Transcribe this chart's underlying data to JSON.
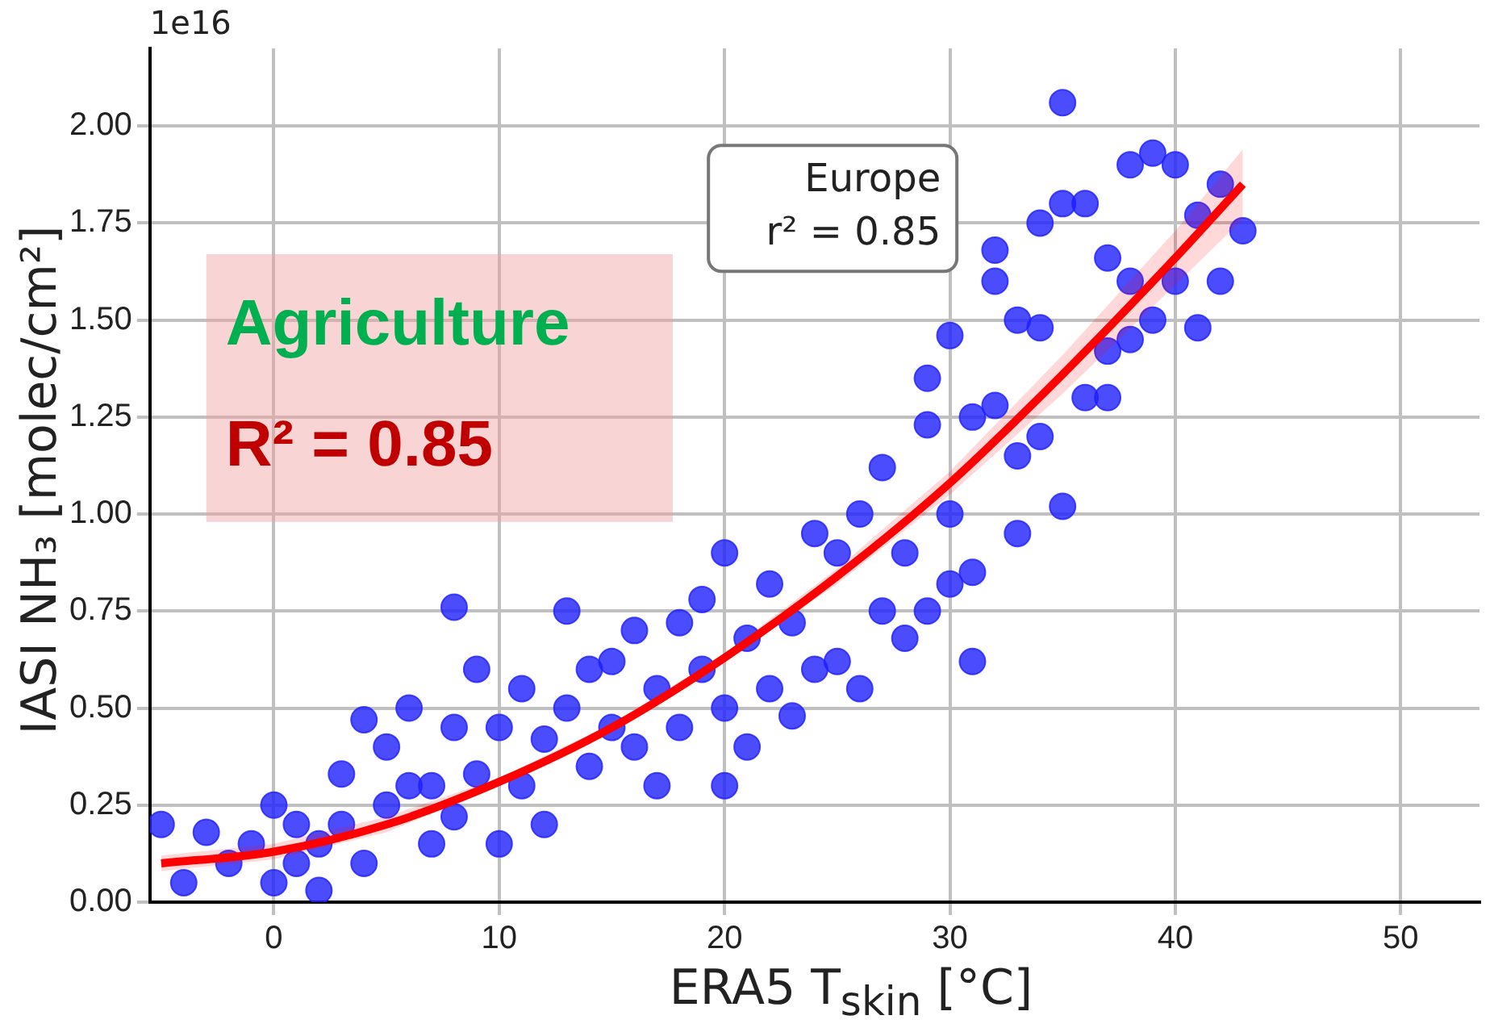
{
  "chart_data": {
    "type": "scatter",
    "xlabel": "ERA5 T$_{skin}$ [°C]",
    "ylabel": "IASI NH₃ [molec/cm²]",
    "annotations": [
      "1e16",
      "Europe",
      "r² = 0.85",
      "Agriculture",
      "R² = 0.85"
    ],
    "xlim": [
      -5.5,
      53.5
    ],
    "xticks": [
      0,
      10,
      20,
      30,
      40,
      50
    ],
    "ylim": [
      0,
      2.2
    ],
    "yticks": [
      {
        "value": 0,
        "label": "0.00"
      },
      {
        "value": 0.25,
        "label": "0.25"
      },
      {
        "value": 0.5,
        "label": "0.50"
      },
      {
        "value": 0.75,
        "label": "0.75"
      },
      {
        "value": 1,
        "label": "1.00"
      },
      {
        "value": 1.25,
        "label": "1.25"
      },
      {
        "value": 1.5,
        "label": "1.50"
      },
      {
        "value": 1.75,
        "label": "1.75"
      },
      {
        "value": 2,
        "label": "2.00"
      }
    ],
    "grid": true,
    "marker": "circle",
    "series": [
      {
        "color": "#1f1fff",
        "x": [
          -5,
          -4,
          -3,
          -2,
          -1,
          0,
          0,
          1,
          1,
          2,
          2,
          3,
          3,
          4,
          4,
          5,
          5,
          6,
          6,
          7,
          7,
          8,
          8,
          8,
          9,
          9,
          10,
          10,
          11,
          11,
          12,
          12,
          13,
          13,
          14,
          14,
          15,
          15,
          16,
          16,
          17,
          17,
          18,
          18,
          19,
          19,
          20,
          20,
          20,
          21,
          21,
          22,
          22,
          23,
          23,
          24,
          24,
          25,
          25,
          26,
          26,
          27,
          27,
          28,
          28,
          29,
          29,
          29,
          30,
          30,
          30,
          31,
          31,
          31,
          32,
          32,
          32,
          33,
          33,
          33,
          34,
          34,
          34,
          35,
          35,
          35,
          36,
          36,
          37,
          37,
          37,
          38,
          38,
          38,
          39,
          39,
          40,
          40,
          41,
          41,
          42,
          42,
          43
        ],
        "values": [
          0.2,
          0.05,
          0.18,
          0.1,
          0.15,
          0.25,
          0.05,
          0.2,
          0.1,
          0.15,
          0.03,
          0.33,
          0.2,
          0.47,
          0.1,
          0.4,
          0.25,
          0.5,
          0.3,
          0.3,
          0.15,
          0.22,
          0.76,
          0.45,
          0.33,
          0.6,
          0.15,
          0.45,
          0.55,
          0.3,
          0.42,
          0.2,
          0.75,
          0.5,
          0.6,
          0.35,
          0.45,
          0.62,
          0.4,
          0.7,
          0.55,
          0.3,
          0.72,
          0.45,
          0.78,
          0.6,
          0.9,
          0.5,
          0.3,
          0.68,
          0.4,
          0.82,
          0.55,
          0.72,
          0.48,
          0.95,
          0.6,
          0.62,
          0.9,
          1.0,
          0.55,
          1.12,
          0.75,
          0.9,
          0.68,
          1.35,
          1.23,
          0.75,
          1.46,
          1.0,
          0.82,
          1.25,
          0.85,
          0.62,
          1.68,
          1.6,
          1.28,
          1.5,
          1.15,
          0.95,
          1.75,
          1.48,
          1.2,
          2.06,
          1.8,
          1.02,
          1.8,
          1.3,
          1.66,
          1.42,
          1.3,
          1.9,
          1.6,
          1.45,
          1.93,
          1.5,
          1.9,
          1.6,
          1.48,
          1.77,
          1.85,
          1.6,
          1.73
        ]
      },
      {
        "type": "line",
        "color": "#ff0000",
        "marker": "none",
        "x": [
          -5,
          0,
          5,
          10,
          15,
          20,
          25,
          30,
          35,
          40,
          43
        ],
        "values": [
          0.1,
          0.13,
          0.2,
          0.31,
          0.45,
          0.63,
          0.84,
          1.08,
          1.36,
          1.66,
          1.85
        ],
        "lower": [
          0.08,
          0.11,
          0.18,
          0.3,
          0.44,
          0.62,
          0.82,
          1.05,
          1.31,
          1.59,
          1.76
        ],
        "upper": [
          0.12,
          0.15,
          0.22,
          0.32,
          0.46,
          0.64,
          0.86,
          1.11,
          1.41,
          1.73,
          1.94
        ]
      }
    ]
  }
}
